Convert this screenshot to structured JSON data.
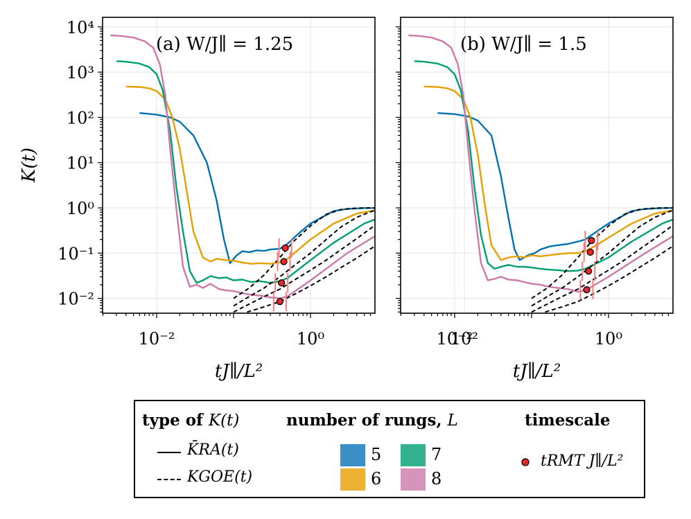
{
  "chart_data": [
    {
      "type": "line",
      "panel": "(a)",
      "title": "(a)  W/J∥ = 1.25",
      "xlabel": "tJ∥/L²",
      "ylabel": "K(t)",
      "xscale": "log",
      "yscale": "log",
      "xlim": [
        0.0015,
        3000
      ],
      "ylim": [
        0.005,
        15000
      ],
      "xticks": [
        "10⁻²",
        "10⁰",
        "10²"
      ],
      "yticks": [
        "10⁻²",
        "10⁻¹",
        "10⁰",
        "10¹",
        "10²",
        "10³",
        "10⁴"
      ],
      "grid": true,
      "series": [
        {
          "name": "5",
          "kind": "K_RA",
          "color": "#0072B2",
          "x": [
            0.006,
            0.01,
            0.015,
            0.02,
            0.03,
            0.045,
            0.06,
            0.075,
            0.09,
            0.11,
            0.13,
            0.16,
            0.2,
            0.25,
            0.3,
            0.4,
            0.5,
            0.7,
            1,
            2,
            3,
            5,
            10,
            30,
            100,
            1000
          ],
          "y": [
            125,
            115,
            100,
            80,
            40,
            10,
            1.5,
            0.2,
            0.06,
            0.09,
            0.11,
            0.105,
            0.115,
            0.112,
            0.12,
            0.125,
            0.16,
            0.27,
            0.45,
            0.85,
            0.95,
            0.99,
            1,
            1,
            1,
            1
          ]
        },
        {
          "name": "6",
          "kind": "K_RA",
          "color": "#E69F00",
          "x": [
            0.004,
            0.006,
            0.008,
            0.01,
            0.013,
            0.016,
            0.02,
            0.025,
            0.03,
            0.04,
            0.05,
            0.06,
            0.08,
            0.1,
            0.13,
            0.17,
            0.22,
            0.3,
            0.4,
            0.5,
            0.7,
            1,
            2,
            4,
            8,
            20,
            50,
            1000
          ],
          "y": [
            480,
            470,
            440,
            380,
            250,
            100,
            20,
            2,
            0.3,
            0.08,
            0.065,
            0.075,
            0.07,
            0.068,
            0.062,
            0.058,
            0.06,
            0.058,
            0.063,
            0.075,
            0.12,
            0.2,
            0.45,
            0.75,
            0.92,
            0.99,
            1,
            1
          ]
        },
        {
          "name": "7",
          "kind": "K_RA",
          "color": "#009E73",
          "x": [
            0.003,
            0.004,
            0.006,
            0.008,
            0.01,
            0.012,
            0.015,
            0.018,
            0.022,
            0.027,
            0.033,
            0.04,
            0.05,
            0.065,
            0.08,
            0.1,
            0.13,
            0.17,
            0.22,
            0.3,
            0.4,
            0.5,
            1,
            2,
            5,
            10,
            30,
            60,
            1000
          ],
          "y": [
            1750,
            1700,
            1550,
            1300,
            900,
            400,
            50,
            3,
            0.3,
            0.04,
            0.022,
            0.025,
            0.031,
            0.028,
            0.029,
            0.025,
            0.026,
            0.023,
            0.024,
            0.022,
            0.024,
            0.028,
            0.07,
            0.17,
            0.45,
            0.7,
            0.93,
            0.99,
            1
          ]
        },
        {
          "name": "8",
          "kind": "K_RA",
          "color": "#CC79A7",
          "x": [
            0.0025,
            0.0035,
            0.005,
            0.007,
            0.009,
            0.011,
            0.013,
            0.015,
            0.018,
            0.022,
            0.027,
            0.033,
            0.04,
            0.05,
            0.065,
            0.08,
            0.1,
            0.13,
            0.17,
            0.22,
            0.3,
            0.4,
            0.5,
            1,
            3,
            10,
            30,
            100,
            300,
            1000
          ],
          "y": [
            6500,
            6300,
            5800,
            4800,
            3500,
            1500,
            300,
            20,
            1,
            0.05,
            0.018,
            0.02,
            0.017,
            0.021,
            0.016,
            0.015,
            0.0145,
            0.013,
            0.012,
            0.0115,
            0.0105,
            0.01,
            0.011,
            0.025,
            0.1,
            0.35,
            0.7,
            0.93,
            0.99,
            1
          ]
        },
        {
          "name": "GOE L=5",
          "kind": "K_GOE",
          "color": "#000000",
          "x": [
            0.1,
            0.16,
            0.25,
            0.4,
            0.6,
            1,
            1.6,
            2.5,
            4,
            6.3,
            10,
            1000
          ],
          "y": [
            0.01,
            0.017,
            0.033,
            0.08,
            0.18,
            0.4,
            0.72,
            0.92,
            0.99,
            1,
            1,
            1
          ]
        },
        {
          "name": "GOE L=6",
          "kind": "K_GOE",
          "color": "#000000",
          "x": [
            0.1,
            0.16,
            0.25,
            0.4,
            0.63,
            1,
            1.6,
            2.5,
            4,
            6.3,
            10,
            16,
            25,
            1000
          ],
          "y": [
            0.0068,
            0.011,
            0.017,
            0.03,
            0.055,
            0.1,
            0.2,
            0.38,
            0.62,
            0.84,
            0.96,
            0.99,
            1,
            1
          ]
        },
        {
          "name": "GOE L=7",
          "kind": "K_GOE",
          "color": "#000000",
          "x": [
            0.1,
            0.16,
            0.25,
            0.4,
            0.63,
            1,
            1.6,
            2.5,
            4,
            6.3,
            10,
            16,
            25,
            40,
            63,
            1000
          ],
          "y": [
            0.005,
            0.0075,
            0.011,
            0.016,
            0.026,
            0.042,
            0.07,
            0.12,
            0.21,
            0.37,
            0.58,
            0.8,
            0.94,
            0.99,
            1,
            1
          ]
        },
        {
          "name": "GOE L=8",
          "kind": "K_GOE",
          "color": "#000000",
          "x": [
            0.15,
            0.25,
            0.4,
            0.63,
            1,
            1.6,
            2.5,
            4,
            6.3,
            10,
            16,
            25,
            40,
            63,
            100,
            160,
            1000
          ],
          "y": [
            0.005,
            0.0065,
            0.0085,
            0.0125,
            0.019,
            0.03,
            0.048,
            0.078,
            0.13,
            0.21,
            0.34,
            0.53,
            0.75,
            0.91,
            0.98,
            1,
            1
          ]
        }
      ],
      "markers": {
        "name": "t_RMT J∥/L²",
        "x": [
          0.47,
          0.45,
          0.42,
          0.4
        ],
        "y": [
          0.13,
          0.065,
          0.022,
          0.0085
        ]
      }
    },
    {
      "type": "line",
      "panel": "(b)",
      "title": "(b)  W/J∥ = 1.5",
      "xlabel": "tJ∥/L²",
      "ylabel": "",
      "xscale": "log",
      "yscale": "log",
      "xlim": [
        0.0015,
        3000
      ],
      "ylim": [
        0.005,
        15000
      ],
      "xticks": [
        "10⁻²",
        "10⁰",
        "10²"
      ],
      "grid": true,
      "series": [
        {
          "name": "5",
          "kind": "K_RA",
          "color": "#0072B2",
          "x": [
            0.006,
            0.01,
            0.015,
            0.02,
            0.03,
            0.04,
            0.05,
            0.06,
            0.07,
            0.09,
            0.11,
            0.13,
            0.17,
            0.22,
            0.3,
            0.4,
            0.5,
            0.7,
            1,
            2,
            3,
            5,
            10,
            30,
            100,
            1000
          ],
          "y": [
            125,
            118,
            105,
            85,
            40,
            5,
            0.6,
            0.12,
            0.07,
            0.09,
            0.1,
            0.12,
            0.14,
            0.15,
            0.16,
            0.18,
            0.2,
            0.3,
            0.45,
            0.85,
            0.95,
            0.99,
            1,
            1,
            1,
            1
          ]
        },
        {
          "name": "6",
          "kind": "K_RA",
          "color": "#E69F00",
          "x": [
            0.004,
            0.006,
            0.008,
            0.01,
            0.013,
            0.016,
            0.02,
            0.025,
            0.03,
            0.04,
            0.05,
            0.065,
            0.08,
            0.1,
            0.13,
            0.17,
            0.22,
            0.3,
            0.4,
            0.5,
            0.7,
            1,
            2,
            4,
            8,
            20,
            50,
            1000
          ],
          "y": [
            480,
            470,
            440,
            380,
            250,
            100,
            15,
            1,
            0.15,
            0.07,
            0.08,
            0.085,
            0.08,
            0.09,
            0.085,
            0.09,
            0.095,
            0.1,
            0.1,
            0.11,
            0.15,
            0.22,
            0.45,
            0.75,
            0.92,
            0.99,
            1,
            1
          ]
        },
        {
          "name": "7",
          "kind": "K_RA",
          "color": "#009E73",
          "x": [
            0.003,
            0.004,
            0.006,
            0.008,
            0.01,
            0.012,
            0.015,
            0.018,
            0.022,
            0.027,
            0.033,
            0.04,
            0.05,
            0.065,
            0.08,
            0.1,
            0.13,
            0.17,
            0.22,
            0.3,
            0.4,
            0.5,
            1,
            2,
            5,
            10,
            30,
            60,
            1000
          ],
          "y": [
            1750,
            1700,
            1550,
            1300,
            900,
            400,
            50,
            3,
            0.25,
            0.06,
            0.045,
            0.05,
            0.055,
            0.05,
            0.05,
            0.048,
            0.045,
            0.043,
            0.042,
            0.04,
            0.041,
            0.045,
            0.08,
            0.18,
            0.45,
            0.7,
            0.93,
            0.99,
            1
          ]
        },
        {
          "name": "8",
          "kind": "K_RA",
          "color": "#CC79A7",
          "x": [
            0.0025,
            0.0035,
            0.005,
            0.007,
            0.009,
            0.011,
            0.013,
            0.015,
            0.018,
            0.022,
            0.027,
            0.033,
            0.04,
            0.05,
            0.065,
            0.08,
            0.1,
            0.13,
            0.17,
            0.22,
            0.3,
            0.4,
            0.5,
            1,
            3,
            10,
            30,
            100,
            300,
            1000
          ],
          "y": [
            6500,
            6300,
            5800,
            4800,
            3500,
            1500,
            300,
            20,
            1,
            0.06,
            0.025,
            0.027,
            0.03,
            0.026,
            0.025,
            0.023,
            0.021,
            0.02,
            0.018,
            0.017,
            0.016,
            0.014,
            0.015,
            0.03,
            0.1,
            0.35,
            0.7,
            0.93,
            0.99,
            1
          ]
        },
        {
          "name": "GOE L=5",
          "kind": "K_GOE",
          "color": "#000000",
          "x": [
            0.1,
            0.16,
            0.25,
            0.4,
            0.6,
            1,
            1.6,
            2.5,
            4,
            6.3,
            10,
            1000
          ],
          "y": [
            0.01,
            0.017,
            0.033,
            0.08,
            0.18,
            0.4,
            0.72,
            0.92,
            0.99,
            1,
            1,
            1
          ]
        },
        {
          "name": "GOE L=6",
          "kind": "K_GOE",
          "color": "#000000",
          "x": [
            0.1,
            0.16,
            0.25,
            0.4,
            0.63,
            1,
            1.6,
            2.5,
            4,
            6.3,
            10,
            16,
            25,
            1000
          ],
          "y": [
            0.0068,
            0.011,
            0.017,
            0.03,
            0.055,
            0.1,
            0.2,
            0.38,
            0.62,
            0.84,
            0.96,
            0.99,
            1,
            1
          ]
        },
        {
          "name": "GOE L=7",
          "kind": "K_GOE",
          "color": "#000000",
          "x": [
            0.1,
            0.16,
            0.25,
            0.4,
            0.63,
            1,
            1.6,
            2.5,
            4,
            6.3,
            10,
            16,
            25,
            40,
            63,
            1000
          ],
          "y": [
            0.005,
            0.0075,
            0.011,
            0.016,
            0.026,
            0.042,
            0.07,
            0.12,
            0.21,
            0.37,
            0.58,
            0.8,
            0.94,
            0.99,
            1,
            1
          ]
        },
        {
          "name": "GOE L=8",
          "kind": "K_GOE",
          "color": "#000000",
          "x": [
            0.15,
            0.25,
            0.4,
            0.63,
            1,
            1.6,
            2.5,
            4,
            6.3,
            10,
            16,
            25,
            40,
            63,
            100,
            160,
            1000
          ],
          "y": [
            0.005,
            0.0065,
            0.0085,
            0.0125,
            0.019,
            0.03,
            0.048,
            0.078,
            0.13,
            0.21,
            0.34,
            0.53,
            0.75,
            0.91,
            0.98,
            1,
            1
          ]
        }
      ],
      "markers": {
        "name": "t_RMT J∥/L²",
        "x": [
          0.6,
          0.58,
          0.55,
          0.52
        ],
        "y": [
          0.19,
          0.105,
          0.04,
          0.0155
        ]
      }
    }
  ],
  "legend": {
    "type_header": "type of",
    "type_header_math": "K(t)",
    "rungs_header": "number of rungs,",
    "rungs_header_math": "L",
    "timescale_header": "timescale",
    "ra_label": "K̄RA(t)",
    "goe_label": "KGOE(t)",
    "rung_items": [
      {
        "label": "5",
        "color": "#3A8FC7"
      },
      {
        "label": "6",
        "color": "#EDB133"
      },
      {
        "label": "7",
        "color": "#33B18F"
      },
      {
        "label": "8",
        "color": "#D694BA"
      }
    ],
    "timescale_label": "tRMT J∥/L²",
    "marker_color": "#E8262B"
  }
}
